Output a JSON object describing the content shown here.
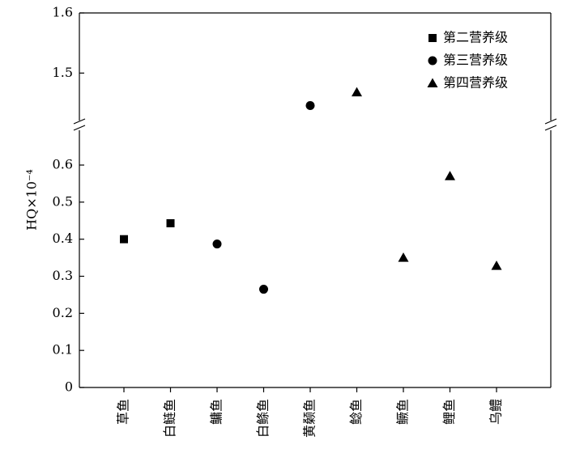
{
  "chart_data": {
    "type": "scatter",
    "y_label": "HQ×10⁻⁴",
    "categories": [
      "草鱼",
      "白鲢鱼",
      "鳙鱼",
      "白鲦鱼",
      "黄颡鱼",
      "鲶鱼",
      "鳜鱼",
      "鲤鱼",
      "乌鳢"
    ],
    "y_segments": [
      {
        "ylim": [
          0,
          0.707
        ],
        "yticks": [
          0,
          0.1,
          0.2,
          0.3,
          0.4,
          0.5,
          0.6
        ]
      },
      {
        "ylim": [
          1.413,
          1.6
        ],
        "yticks": [
          1.5,
          1.6
        ]
      }
    ],
    "legend": "upper right",
    "series": [
      {
        "name": "第二营养级",
        "marker": "square",
        "color": "#000000",
        "values": [
          0.4,
          0.443,
          null,
          null,
          null,
          null,
          null,
          null,
          null
        ]
      },
      {
        "name": "第三营养级",
        "marker": "circle",
        "color": "#000000",
        "values": [
          null,
          null,
          0.387,
          0.265,
          1.446,
          null,
          null,
          null,
          null
        ]
      },
      {
        "name": "第四营养级",
        "marker": "triangle",
        "color": "#000000",
        "values": [
          null,
          null,
          null,
          null,
          null,
          1.468,
          0.35,
          0.57,
          0.328
        ]
      }
    ]
  }
}
